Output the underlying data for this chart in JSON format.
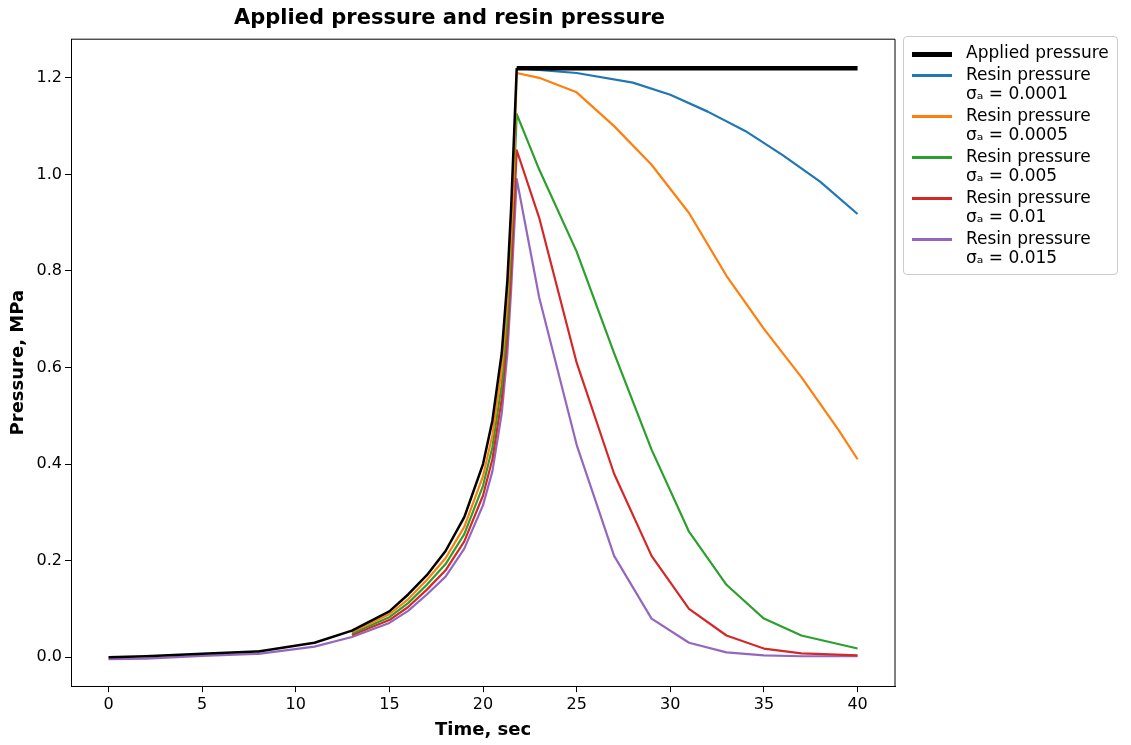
{
  "chart_data": {
    "type": "line",
    "title": "Applied pressure and resin pressure",
    "xlabel": "Time, sec",
    "ylabel": "Pressure, MPa",
    "xlim": [
      -2,
      42
    ],
    "ylim": [
      -0.06,
      1.28
    ],
    "xticks": [
      0,
      5,
      10,
      15,
      20,
      25,
      30,
      35,
      40
    ],
    "yticks": [
      {
        "value": 0,
        "label": "0.0"
      },
      {
        "value": 0.2,
        "label": "0.2"
      },
      {
        "value": 0.4,
        "label": "0.4"
      },
      {
        "value": 0.6,
        "label": "0.6"
      },
      {
        "value": 0.8,
        "label": "0.8"
      },
      {
        "value": 1.0,
        "label": "1.0"
      },
      {
        "value": 1.2,
        "label": "1.2"
      }
    ],
    "grid": false,
    "legend": "top right",
    "marker": "none",
    "line_style": "solid",
    "series": [
      {
        "name": "Applied pressure",
        "color": "#000000",
        "x": [
          0,
          2,
          5,
          8,
          11,
          13,
          15,
          16,
          17,
          18,
          19,
          20,
          20.5,
          21,
          21.3,
          21.5,
          21.8,
          40
        ],
        "values": [
          0,
          0.002,
          0.007,
          0.012,
          0.03,
          0.055,
          0.095,
          0.13,
          0.17,
          0.22,
          0.29,
          0.4,
          0.49,
          0.63,
          0.78,
          0.93,
          1.22,
          1.22
        ]
      },
      {
        "name": "Resin pressure\nσₐ = 0.0001",
        "color": "#1f77b4",
        "x": [
          21.8,
          25,
          28,
          30,
          32,
          34,
          36,
          38,
          40
        ],
        "values": [
          1.22,
          1.21,
          1.19,
          1.165,
          1.13,
          1.09,
          1.04,
          0.985,
          0.918
        ]
      },
      {
        "name": "Resin pressure\nσₐ = 0.0005",
        "color": "#ff7f0e",
        "x": [
          13,
          15,
          16,
          17,
          18,
          19,
          20,
          20.5,
          21,
          21.3,
          21.6,
          21.8,
          23,
          25,
          27,
          29,
          31,
          33,
          35,
          37,
          39,
          40
        ],
        "values": [
          0.052,
          0.089,
          0.12,
          0.16,
          0.205,
          0.27,
          0.375,
          0.46,
          0.595,
          0.74,
          0.95,
          1.21,
          1.2,
          1.17,
          1.1,
          1.02,
          0.92,
          0.79,
          0.68,
          0.58,
          0.47,
          0.41
        ]
      },
      {
        "name": "Resin pressure\nσₐ = 0.005",
        "color": "#2ca02c",
        "x": [
          13,
          15,
          16,
          17,
          18,
          19,
          20,
          20.5,
          21,
          21.3,
          21.5,
          21.8,
          23,
          25,
          27,
          29,
          31,
          33,
          35,
          37,
          40
        ],
        "values": [
          0.049,
          0.083,
          0.112,
          0.15,
          0.193,
          0.255,
          0.355,
          0.435,
          0.565,
          0.7,
          0.85,
          1.125,
          1.01,
          0.84,
          0.63,
          0.43,
          0.26,
          0.15,
          0.08,
          0.045,
          0.018
        ]
      },
      {
        "name": "Resin pressure\nσₐ = 0.01",
        "color": "#d62728",
        "x": [
          13,
          15,
          16,
          17,
          18,
          19,
          20,
          20.5,
          21,
          21.3,
          21.5,
          21.8,
          23,
          25,
          27,
          29,
          31,
          33,
          35,
          37,
          40
        ],
        "values": [
          0.046,
          0.077,
          0.104,
          0.14,
          0.18,
          0.24,
          0.335,
          0.41,
          0.535,
          0.665,
          0.8,
          1.05,
          0.91,
          0.61,
          0.38,
          0.21,
          0.1,
          0.045,
          0.018,
          0.008,
          0.004
        ]
      },
      {
        "name": "Resin pressure\nσₐ = 0.015",
        "color": "#9467bd",
        "x": [
          0,
          2,
          5,
          8,
          11,
          13,
          15,
          16,
          17,
          18,
          19,
          20,
          20.5,
          21,
          21.3,
          21.5,
          21.8,
          23,
          25,
          27,
          29,
          31,
          33,
          35,
          37,
          40
        ],
        "values": [
          -0.004,
          -0.003,
          0.003,
          0.007,
          0.022,
          0.042,
          0.071,
          0.096,
          0.13,
          0.167,
          0.225,
          0.315,
          0.385,
          0.505,
          0.63,
          0.76,
          0.99,
          0.745,
          0.44,
          0.21,
          0.08,
          0.03,
          0.01,
          0.004,
          0.002,
          0.002
        ]
      }
    ]
  }
}
